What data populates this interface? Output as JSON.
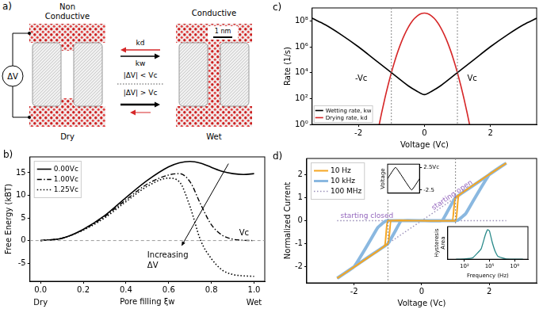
{
  "diagram": {
    "panel": "a)",
    "states": [
      {
        "title": [
          "Non",
          "Conductive"
        ],
        "label": "Dry"
      },
      {
        "title": [
          "Conductive"
        ],
        "label": "Wet"
      }
    ],
    "source": "ΔV",
    "rates": [
      "kd",
      "kw"
    ],
    "conditions": [
      "|ΔV| < Vc",
      "|ΔV| > Vc"
    ],
    "scale_bar": "1 nm"
  },
  "chart_data": [
    {
      "panel": "b)",
      "type": "line",
      "x_label": "Pore filling ξw",
      "y_label": "Free Energy (kBT)",
      "grid": false,
      "legend": "upper left",
      "xlim": [
        -0.05,
        1.05
      ],
      "ylim": [
        -9,
        18.5
      ],
      "xticks": [
        {
          "value": 0,
          "label": "0.0"
        },
        {
          "value": 0.2,
          "label": "0.2"
        },
        {
          "value": 0.4,
          "label": "0.4"
        },
        {
          "value": 0.6,
          "label": "0.6"
        },
        {
          "value": 0.8,
          "label": "0.8"
        },
        {
          "value": 1,
          "label": "1.0"
        }
      ],
      "yticks": [
        -5,
        0,
        5,
        10,
        15
      ],
      "x_end_labels": [
        {
          "value": 0,
          "label": "Dry"
        },
        {
          "value": 1,
          "label": "Wet"
        }
      ],
      "hlines": [
        0
      ],
      "x": [
        0,
        0.1,
        0.2,
        0.3,
        0.4,
        0.5,
        0.6,
        0.65,
        0.7,
        0.75,
        0.8,
        0.85,
        0.9,
        0.95,
        1.0
      ],
      "series": [
        {
          "name": "0.00Vc",
          "color": "#000000",
          "line_style": "solid",
          "values": [
            0,
            0.5,
            2.5,
            5.5,
            9.5,
            13.3,
            16.3,
            17.2,
            17.5,
            17.1,
            16.2,
            15.3,
            14.8,
            14.6,
            14.8
          ]
        },
        {
          "name": "1.00Vc",
          "color": "#000000",
          "line_style": "dashdot",
          "values": [
            0,
            0.5,
            2.4,
            5.3,
            9.0,
            12.5,
            14.5,
            14.8,
            13.0,
            8.0,
            3.5,
            1.2,
            0.3,
            0.05,
            0
          ]
        },
        {
          "name": "1.25Vc",
          "color": "#000000",
          "line_style": "dotted",
          "values": [
            0,
            0.5,
            2.3,
            5.0,
            8.6,
            12.0,
            13.8,
            13.0,
            7.5,
            0,
            -4.0,
            -6.5,
            -7.5,
            -7.8,
            -7.9
          ]
        }
      ],
      "annotations": [
        {
          "text": [
            "Vc"
          ],
          "x": 0.93,
          "y": 1.2
        },
        {
          "text": [
            "Increasing",
            "ΔV"
          ],
          "x": 0.5,
          "y": -3.8,
          "arrow_from": [
            0.88,
            17
          ],
          "arrow_to": [
            0.66,
            -1.2
          ]
        }
      ]
    },
    {
      "panel": "c)",
      "type": "line",
      "x_label": "Voltage (Vc)",
      "y_label": "Rate (1/s)",
      "grid": false,
      "legend": "lower left",
      "log": "y",
      "xlim": [
        -3.4,
        3.4
      ],
      "ylim": [
        1,
        1000000000
      ],
      "xticks": [
        -2,
        0,
        2
      ],
      "yticks": [
        {
          "value": 1,
          "label": "10⁰"
        },
        {
          "value": 100,
          "label": "10²"
        },
        {
          "value": 10000,
          "label": "10⁴"
        },
        {
          "value": 1000000,
          "label": "10⁶"
        },
        {
          "value": 100000000,
          "label": "10⁸"
        }
      ],
      "vlines": [
        -1,
        1
      ],
      "series": [
        {
          "name": "Wetting rate, kw",
          "color": "#000000",
          "x": [
            -3.4,
            -3,
            -2.5,
            -2,
            -1.5,
            -1,
            -0.5,
            -0.25,
            0,
            0.25,
            0.5,
            1,
            1.5,
            2,
            2.5,
            3,
            3.4
          ],
          "values": [
            158000000,
            50100000,
            7940000,
            1000000,
            100000,
            10000,
            1000,
            400,
            200,
            400,
            1000,
            10000,
            100000,
            1000000,
            7940000,
            50100000,
            158000000
          ]
        },
        {
          "name": "Drying rate, kd",
          "color": "#d62728",
          "x": [
            -1.4,
            -1.3,
            -1.2,
            -1.1,
            -1.0,
            -0.9,
            -0.8,
            -0.7,
            -0.6,
            -0.5,
            -0.4,
            -0.3,
            -0.2,
            -0.1,
            0,
            0.1,
            0.2,
            0.3,
            0.4,
            0.5,
            0.6,
            0.7,
            0.8,
            0.9,
            1.0,
            1.1,
            1.2,
            1.3,
            1.4
          ],
          "values": [
            0.384,
            6.7,
            94.6,
            1081,
            10000,
            74800,
            453000,
            2220000,
            8790000,
            28200000,
            73100000,
            153000000,
            261000000,
            358000000,
            398000000,
            358000000,
            261000000,
            153000000,
            73100000,
            28200000,
            8790000,
            2220000,
            453000,
            74800,
            10000,
            1081,
            94.6,
            6.7,
            0.384
          ]
        }
      ],
      "annotations": [
        {
          "text": [
            "-Vc"
          ],
          "x": -2.1,
          "y": 2500
        },
        {
          "text": [
            "Vc"
          ],
          "x": 1.3,
          "y": 2500
        }
      ]
    },
    {
      "panel": "d)",
      "type": "line",
      "x_label": "Voltage (Vc)",
      "y_label": "Normalized Current",
      "grid": false,
      "legend": "upper left",
      "xlim": [
        -3.4,
        3.4
      ],
      "ylim": [
        -2.7,
        2.7
      ],
      "xticks": [
        -2,
        0,
        2
      ],
      "yticks": [
        -2,
        -1,
        0,
        1,
        2
      ],
      "vlines": [
        -1,
        1
      ],
      "series": [
        {
          "name": "10 Hz",
          "color": "#f5a623",
          "line_style": "solid",
          "x": [
            -2.5,
            -1.0,
            -0.95,
            -0.9,
            1.0,
            1.05,
            1.1,
            2.5,
            null,
            2.5,
            1.0,
            0.95,
            0.9,
            -1.0,
            -1.05,
            -1.1,
            -2.5
          ],
          "values": [
            -2.5,
            -1.0,
            -0.5,
            0,
            0,
            0.5,
            1.1,
            2.5,
            null,
            2.5,
            1.0,
            0.5,
            0,
            0,
            -0.5,
            -1.1,
            -2.5
          ]
        },
        {
          "name": "10 kHz",
          "color": "#8ab8e0",
          "line_style": "solid",
          "x": [
            -2.5,
            -1.5,
            -1.0,
            -0.8,
            -0.6,
            0,
            1.0,
            1.1,
            1.3,
            1.5,
            1.7,
            2.0,
            2.5,
            null,
            2.5,
            1.5,
            1.0,
            0.8,
            0.6,
            0,
            -1.0,
            -1.1,
            -1.3,
            -1.5,
            -1.7,
            -2.0,
            -2.5
          ],
          "values": [
            -2.5,
            -1.5,
            -1.0,
            -0.5,
            0,
            0,
            0,
            0.05,
            0.3,
            0.8,
            1.3,
            2.0,
            2.5,
            null,
            2.5,
            1.5,
            1.0,
            0.5,
            0,
            0,
            0,
            -0.05,
            -0.3,
            -0.8,
            -1.3,
            -2.0,
            -2.5
          ]
        },
        {
          "name": "100 MHz",
          "color": "#9a8fb8",
          "line_style": "dotted",
          "x": [
            -2.5,
            2.5,
            null,
            -2.5,
            2.5
          ],
          "values": [
            0,
            0,
            null,
            -2.5,
            2.5
          ]
        }
      ],
      "annotations": [
        {
          "text": [
            "starting closed"
          ],
          "x": -2.4,
          "y": 0.12
        },
        {
          "text": [
            "starting open"
          ],
          "x": 0.35,
          "y": 0.45
        }
      ],
      "insets": [
        {
          "type": "line",
          "y_label": "Voltage",
          "grid": false,
          "tick_labels": "y",
          "xlim": [
            0,
            4
          ],
          "ylim": [
            -3.2,
            3.2
          ],
          "yticks": [
            {
              "value": 2.5,
              "label": "2.5Vc"
            },
            {
              "value": -2.5,
              "label": "-2.5"
            }
          ],
          "x": [
            0,
            1,
            3,
            4
          ],
          "values": [
            0,
            2.5,
            -2.5,
            0
          ],
          "color": "#000000"
        },
        {
          "type": "line",
          "x_label": "Frequency (Hz)",
          "y_label": "Hysteresis Area",
          "grid": false,
          "tick_labels": "x",
          "log": "x",
          "xlim": [
            1,
            4000000000
          ],
          "ylim": [
            0,
            1.1
          ],
          "xticks": [
            {
              "value": 100,
              "label": "10²"
            },
            {
              "value": 100000,
              "label": "10⁵"
            },
            {
              "value": 100000000,
              "label": "10⁸"
            }
          ],
          "x": [
            10,
            100,
            1000,
            10000,
            30000,
            60000,
            100000,
            200000,
            500000,
            1000000,
            10000000,
            1000000000
          ],
          "values": [
            0,
            0.01,
            0.05,
            0.35,
            0.8,
            1.0,
            0.95,
            0.6,
            0.25,
            0.1,
            0.01,
            0
          ],
          "color": "#2a8a8a"
        }
      ]
    }
  ]
}
